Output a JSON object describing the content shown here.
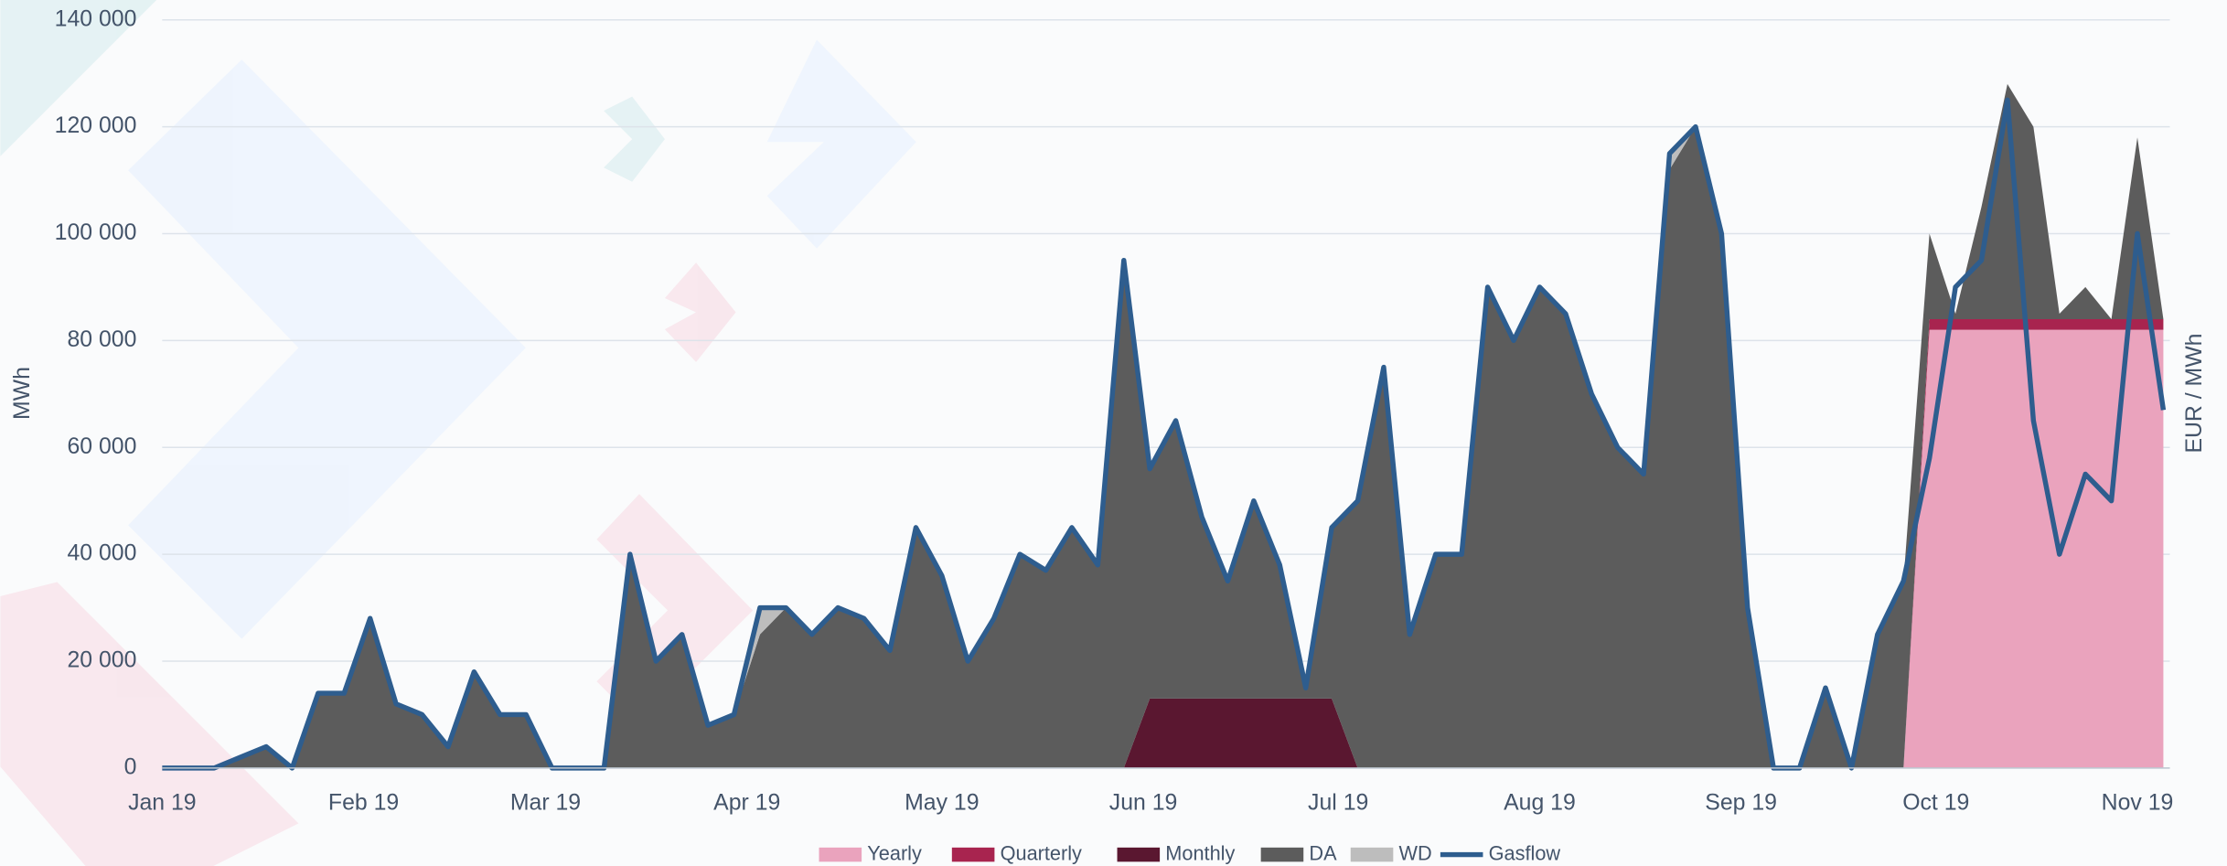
{
  "chart_data": {
    "type": "area",
    "y_label": "MWh",
    "y2_label": "EUR / MWh",
    "grid": true,
    "legend": "bottom",
    "xlim": [
      0,
      309
    ],
    "xticks": [
      {
        "value": 0,
        "label": "Jan 19"
      },
      {
        "value": 31,
        "label": "Feb 19"
      },
      {
        "value": 59,
        "label": "Mar 19"
      },
      {
        "value": 90,
        "label": "Apr 19"
      },
      {
        "value": 120,
        "label": "May 19"
      },
      {
        "value": 151,
        "label": "Jun 19"
      },
      {
        "value": 181,
        "label": "Jul 19"
      },
      {
        "value": 212,
        "label": "Aug 19"
      },
      {
        "value": 243,
        "label": "Sep 19"
      },
      {
        "value": 273,
        "label": "Oct 19"
      },
      {
        "value": 304,
        "label": "Nov 19"
      }
    ],
    "ylim": [
      0,
      140000
    ],
    "yticks": [
      0,
      {
        "value": 20000,
        "label": "20 000"
      },
      {
        "value": 40000,
        "label": "40 000"
      },
      {
        "value": 60000,
        "label": "60 000"
      },
      {
        "value": 80000,
        "label": "80 000"
      },
      {
        "value": 100000,
        "label": "100 000"
      },
      {
        "value": 120000,
        "label": "120 000"
      },
      {
        "value": 140000,
        "label": "140 000"
      }
    ],
    "x": [
      0,
      4,
      8,
      12,
      16,
      20,
      24,
      28,
      32,
      36,
      40,
      44,
      48,
      52,
      56,
      60,
      64,
      68,
      72,
      76,
      80,
      84,
      88,
      92,
      96,
      100,
      104,
      108,
      112,
      116,
      120,
      124,
      128,
      132,
      136,
      140,
      144,
      148,
      152,
      156,
      160,
      164,
      168,
      172,
      176,
      180,
      184,
      188,
      192,
      196,
      200,
      204,
      208,
      212,
      216,
      220,
      224,
      228,
      232,
      236,
      240,
      244,
      248,
      252,
      256,
      260,
      264,
      268,
      272,
      276,
      280,
      284,
      288,
      292,
      296,
      300,
      304,
      308
    ],
    "series": [
      {
        "name": "Yearly",
        "type": "area",
        "color": "#eaa3bd",
        "values": [
          0,
          0,
          0,
          0,
          0,
          0,
          0,
          0,
          0,
          0,
          0,
          0,
          0,
          0,
          0,
          0,
          0,
          0,
          0,
          0,
          0,
          0,
          0,
          0,
          0,
          0,
          0,
          0,
          0,
          0,
          0,
          0,
          0,
          0,
          0,
          0,
          0,
          0,
          0,
          0,
          0,
          0,
          0,
          0,
          0,
          0,
          0,
          0,
          0,
          0,
          0,
          0,
          0,
          0,
          0,
          0,
          0,
          0,
          0,
          0,
          0,
          0,
          0,
          0,
          0,
          0,
          0,
          0,
          82000,
          82000,
          82000,
          82000,
          82000,
          82000,
          82000,
          82000,
          82000,
          82000
        ]
      },
      {
        "name": "Quarterly",
        "type": "area",
        "color": "#a8244f",
        "values": [
          0,
          0,
          0,
          0,
          0,
          0,
          0,
          0,
          0,
          0,
          0,
          0,
          0,
          0,
          0,
          0,
          0,
          0,
          0,
          0,
          0,
          0,
          0,
          0,
          0,
          0,
          0,
          0,
          0,
          0,
          0,
          0,
          0,
          0,
          0,
          0,
          0,
          0,
          0,
          0,
          0,
          0,
          0,
          0,
          0,
          0,
          0,
          0,
          0,
          0,
          0,
          0,
          0,
          0,
          0,
          0,
          0,
          0,
          0,
          0,
          0,
          0,
          0,
          0,
          0,
          0,
          0,
          0,
          2000,
          2000,
          2000,
          2000,
          2000,
          2000,
          2000,
          2000,
          2000,
          2000
        ]
      },
      {
        "name": "Monthly",
        "type": "area",
        "color": "#5a1730",
        "values": [
          0,
          0,
          0,
          0,
          0,
          0,
          0,
          0,
          0,
          0,
          0,
          0,
          0,
          0,
          0,
          0,
          0,
          0,
          0,
          0,
          0,
          0,
          0,
          0,
          0,
          0,
          0,
          0,
          0,
          0,
          0,
          0,
          0,
          0,
          0,
          0,
          0,
          0,
          13000,
          13000,
          13000,
          13000,
          13000,
          13000,
          13000,
          13000,
          0,
          0,
          0,
          0,
          0,
          0,
          0,
          0,
          0,
          0,
          0,
          0,
          0,
          0,
          0,
          0,
          0,
          0,
          0,
          0,
          0,
          0,
          0,
          0,
          0,
          0,
          0,
          0,
          0,
          0,
          0,
          0
        ]
      },
      {
        "name": "DA",
        "type": "area",
        "color": "#5c5c5c",
        "values": [
          0,
          0,
          0,
          2000,
          4000,
          0,
          14000,
          14000,
          28000,
          12000,
          10000,
          4000,
          18000,
          10000,
          10000,
          0,
          0,
          0,
          40000,
          20000,
          25000,
          8000,
          10000,
          25000,
          30000,
          25000,
          30000,
          28000,
          22000,
          45000,
          36000,
          20000,
          28000,
          40000,
          37000,
          45000,
          38000,
          95000,
          43000,
          52000,
          34000,
          22000,
          37000,
          25000,
          2000,
          32000,
          50000,
          75000,
          25000,
          40000,
          40000,
          90000,
          80000,
          90000,
          85000,
          70000,
          60000,
          55000,
          112000,
          120000,
          100000,
          30000,
          0,
          0,
          15000,
          0,
          25000,
          35000,
          16000,
          1000,
          21000,
          44000,
          36000,
          1000,
          6000,
          0,
          34000,
          0
        ]
      },
      {
        "name": "WD",
        "type": "area",
        "color": "#bdbdbd",
        "values": [
          0,
          0,
          0,
          0,
          0,
          0,
          0,
          0,
          0,
          0,
          0,
          0,
          0,
          0,
          0,
          0,
          0,
          0,
          0,
          0,
          0,
          0,
          0,
          5000,
          0,
          0,
          0,
          0,
          0,
          0,
          0,
          0,
          0,
          0,
          0,
          0,
          0,
          0,
          0,
          0,
          0,
          0,
          0,
          0,
          0,
          0,
          0,
          0,
          0,
          0,
          0,
          0,
          0,
          0,
          0,
          0,
          0,
          0,
          3000,
          0,
          0,
          0,
          0,
          0,
          0,
          0,
          0,
          0,
          0,
          0,
          0,
          0,
          0,
          0,
          0,
          0,
          0,
          0
        ]
      },
      {
        "name": "Gasflow",
        "type": "line",
        "color": "#2e5d8e",
        "values": [
          0,
          0,
          0,
          2000,
          4000,
          0,
          14000,
          14000,
          28000,
          12000,
          10000,
          4000,
          18000,
          10000,
          10000,
          0,
          0,
          0,
          40000,
          20000,
          25000,
          8000,
          10000,
          30000,
          30000,
          25000,
          30000,
          28000,
          22000,
          45000,
          36000,
          20000,
          28000,
          40000,
          37000,
          45000,
          38000,
          95000,
          56000,
          65000,
          47000,
          35000,
          50000,
          38000,
          15000,
          45000,
          50000,
          75000,
          25000,
          40000,
          40000,
          90000,
          80000,
          90000,
          85000,
          70000,
          60000,
          55000,
          115000,
          120000,
          100000,
          30000,
          0,
          0,
          15000,
          0,
          25000,
          35000,
          58000,
          90000,
          95000,
          125000,
          65000,
          40000,
          55000,
          50000,
          100000,
          67000
        ]
      }
    ]
  }
}
